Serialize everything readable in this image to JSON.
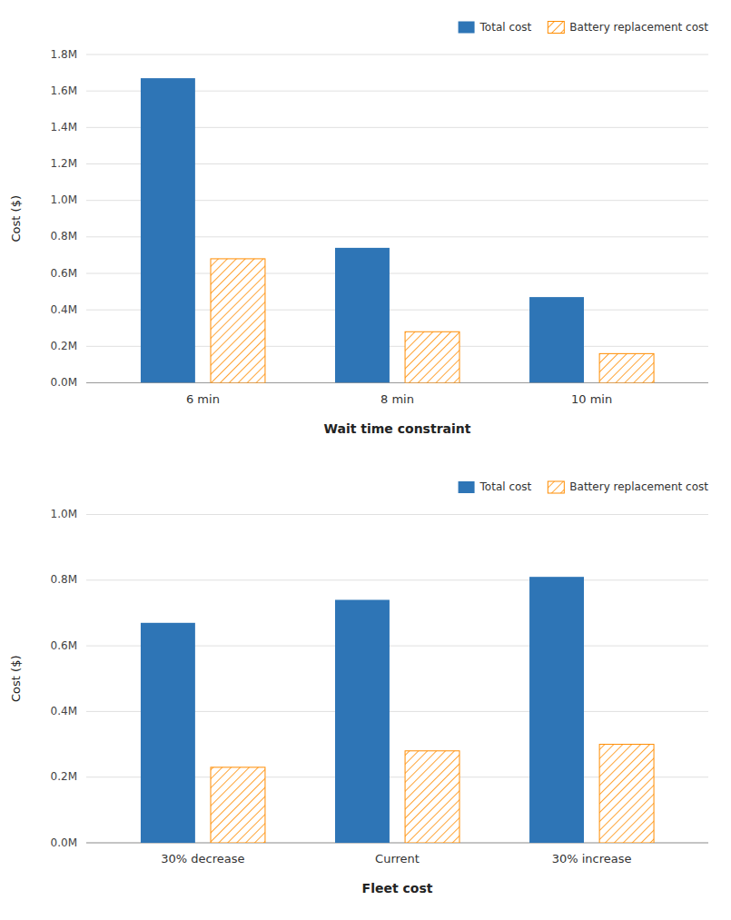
{
  "chart_data": [
    {
      "type": "bar",
      "categories": [
        "6 min",
        "8 min",
        "10 min"
      ],
      "series": [
        {
          "name": "Total cost",
          "color": "#2E75B6",
          "values": [
            1670000,
            740000,
            470000
          ]
        },
        {
          "name": "Battery replacement cost",
          "color": "#FF8C00",
          "values": [
            680000,
            280000,
            160000
          ]
        }
      ],
      "xlabel": "Wait time constraint",
      "ylabel": "Cost ($)",
      "ylim": [
        0,
        1800000
      ],
      "yticks": [
        {
          "value": 0,
          "label": "0.0M"
        },
        {
          "value": 200000,
          "label": "0.2M"
        },
        {
          "value": 400000,
          "label": "0.4M"
        },
        {
          "value": 600000,
          "label": "0.6M"
        },
        {
          "value": 800000,
          "label": "0.8M"
        },
        {
          "value": 1000000,
          "label": "1.0M"
        },
        {
          "value": 1200000,
          "label": "1.2M"
        },
        {
          "value": 1400000,
          "label": "1.4M"
        },
        {
          "value": 1600000,
          "label": "1.6M"
        },
        {
          "value": 1800000,
          "label": "1.8M"
        }
      ],
      "grid": true,
      "legend": "upper right"
    },
    {
      "type": "bar",
      "categories": [
        "30% decrease",
        "Current",
        "30% increase"
      ],
      "series": [
        {
          "name": "Total cost",
          "color": "#2E75B6",
          "values": [
            670000,
            740000,
            810000
          ]
        },
        {
          "name": "Battery replacement cost",
          "color": "#FF8C00",
          "values": [
            230000,
            280000,
            300000
          ]
        }
      ],
      "xlabel": "Fleet cost",
      "ylabel": "Cost ($)",
      "ylim": [
        0,
        1000000
      ],
      "yticks": [
        {
          "value": 0,
          "label": "0.0M"
        },
        {
          "value": 200000,
          "label": "0.2M"
        },
        {
          "value": 400000,
          "label": "0.4M"
        },
        {
          "value": 600000,
          "label": "0.6M"
        },
        {
          "value": 800000,
          "label": "0.8M"
        },
        {
          "value": 1000000,
          "label": "1.0M"
        }
      ],
      "grid": true,
      "legend": "upper right"
    }
  ]
}
